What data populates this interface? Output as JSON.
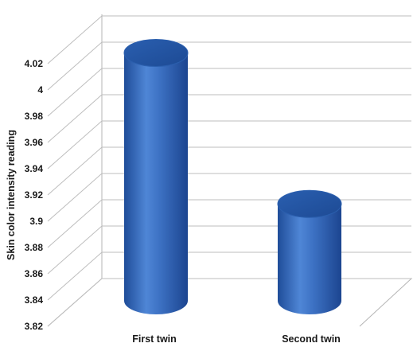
{
  "chart_data": {
    "type": "bar",
    "style": "3d-cylinder",
    "categories": [
      "First twin",
      "Second twin"
    ],
    "values": [
      4.01,
      3.895
    ],
    "title": "",
    "xlabel": "",
    "ylabel": "Skin color intensity reading",
    "ylim": [
      3.82,
      4.02
    ],
    "yticks": [
      "3.82",
      "3.84",
      "3.86",
      "3.88",
      "3.9",
      "3.92",
      "3.94",
      "3.96",
      "3.98",
      "4",
      "4.02"
    ],
    "grid": true,
    "legend": "none",
    "bar_color": "#3a6fc4"
  }
}
